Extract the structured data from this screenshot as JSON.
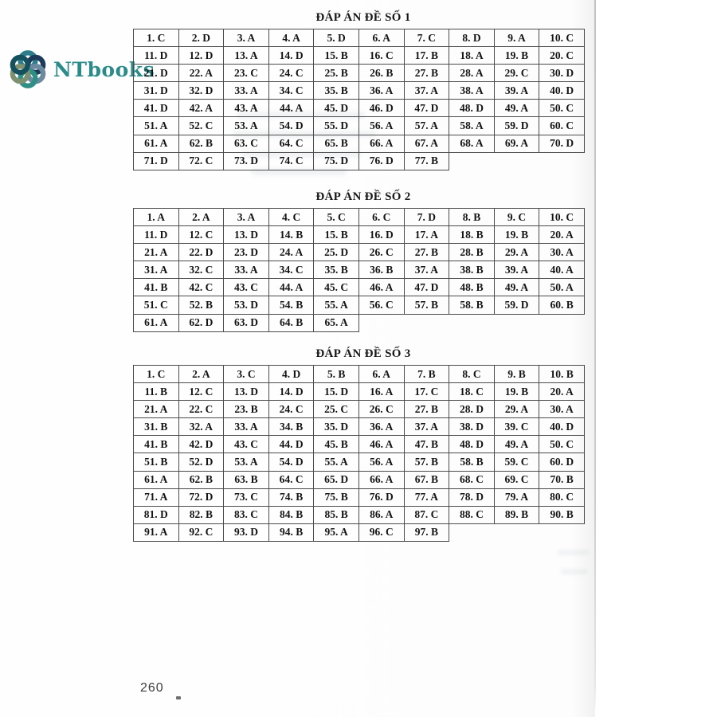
{
  "logo": {
    "text": "NTbooks",
    "color": "#2b8a8a",
    "icon": "knot-flower-icon",
    "icon_colors": [
      "#2d7d8c",
      "#1e3a5a",
      "#6b8aa0",
      "#2f8f85",
      "#7d9070",
      "#15505e"
    ]
  },
  "tables": [
    {
      "title": "ĐÁP ÁN ĐỀ SỐ 1",
      "answers": [
        "C",
        "D",
        "A",
        "A",
        "D",
        "A",
        "C",
        "D",
        "A",
        "C",
        "D",
        "D",
        "A",
        "D",
        "B",
        "C",
        "B",
        "A",
        "B",
        "C",
        "D",
        "A",
        "C",
        "C",
        "B",
        "B",
        "B",
        "A",
        "C",
        "D",
        "D",
        "D",
        "A",
        "C",
        "B",
        "A",
        "A",
        "A",
        "A",
        "D",
        "D",
        "A",
        "A",
        "A",
        "D",
        "D",
        "D",
        "D",
        "A",
        "C",
        "A",
        "C",
        "A",
        "D",
        "D",
        "A",
        "A",
        "A",
        "D",
        "C",
        "A",
        "B",
        "C",
        "C",
        "B",
        "A",
        "A",
        "A",
        "A",
        "D",
        "D",
        "C",
        "D",
        "C",
        "D",
        "D",
        "B"
      ]
    },
    {
      "title": "ĐÁP ÁN ĐỀ SỐ 2",
      "answers": [
        "A",
        "A",
        "A",
        "C",
        "C",
        "C",
        "D",
        "B",
        "C",
        "C",
        "D",
        "C",
        "D",
        "B",
        "B",
        "D",
        "A",
        "B",
        "B",
        "A",
        "A",
        "D",
        "D",
        "A",
        "D",
        "C",
        "B",
        "B",
        "A",
        "A",
        "A",
        "C",
        "A",
        "C",
        "B",
        "B",
        "A",
        "B",
        "A",
        "A",
        "B",
        "C",
        "C",
        "A",
        "C",
        "A",
        "D",
        "B",
        "A",
        "A",
        "C",
        "B",
        "D",
        "B",
        "A",
        "C",
        "B",
        "B",
        "D",
        "B",
        "A",
        "D",
        "D",
        "B",
        "A"
      ]
    },
    {
      "title": "ĐÁP ÁN ĐỀ SỐ 3",
      "answers": [
        "C",
        "A",
        "C",
        "D",
        "B",
        "A",
        "B",
        "C",
        "B",
        "B",
        "B",
        "C",
        "D",
        "D",
        "D",
        "A",
        "C",
        "C",
        "B",
        "A",
        "A",
        "C",
        "B",
        "C",
        "C",
        "C",
        "B",
        "D",
        "A",
        "A",
        "B",
        "A",
        "A",
        "B",
        "D",
        "A",
        "A",
        "D",
        "C",
        "D",
        "B",
        "D",
        "C",
        "D",
        "B",
        "A",
        "B",
        "D",
        "A",
        "C",
        "B",
        "D",
        "A",
        "D",
        "A",
        "A",
        "B",
        "B",
        "C",
        "D",
        "A",
        "B",
        "B",
        "C",
        "D",
        "A",
        "B",
        "C",
        "C",
        "B",
        "A",
        "D",
        "C",
        "B",
        "B",
        "D",
        "A",
        "D",
        "A",
        "C",
        "D",
        "B",
        "C",
        "B",
        "B",
        "A",
        "C",
        "C",
        "B",
        "B",
        "A",
        "C",
        "D",
        "B",
        "A",
        "C",
        "B"
      ]
    }
  ],
  "footer": {
    "page_number": "260"
  }
}
